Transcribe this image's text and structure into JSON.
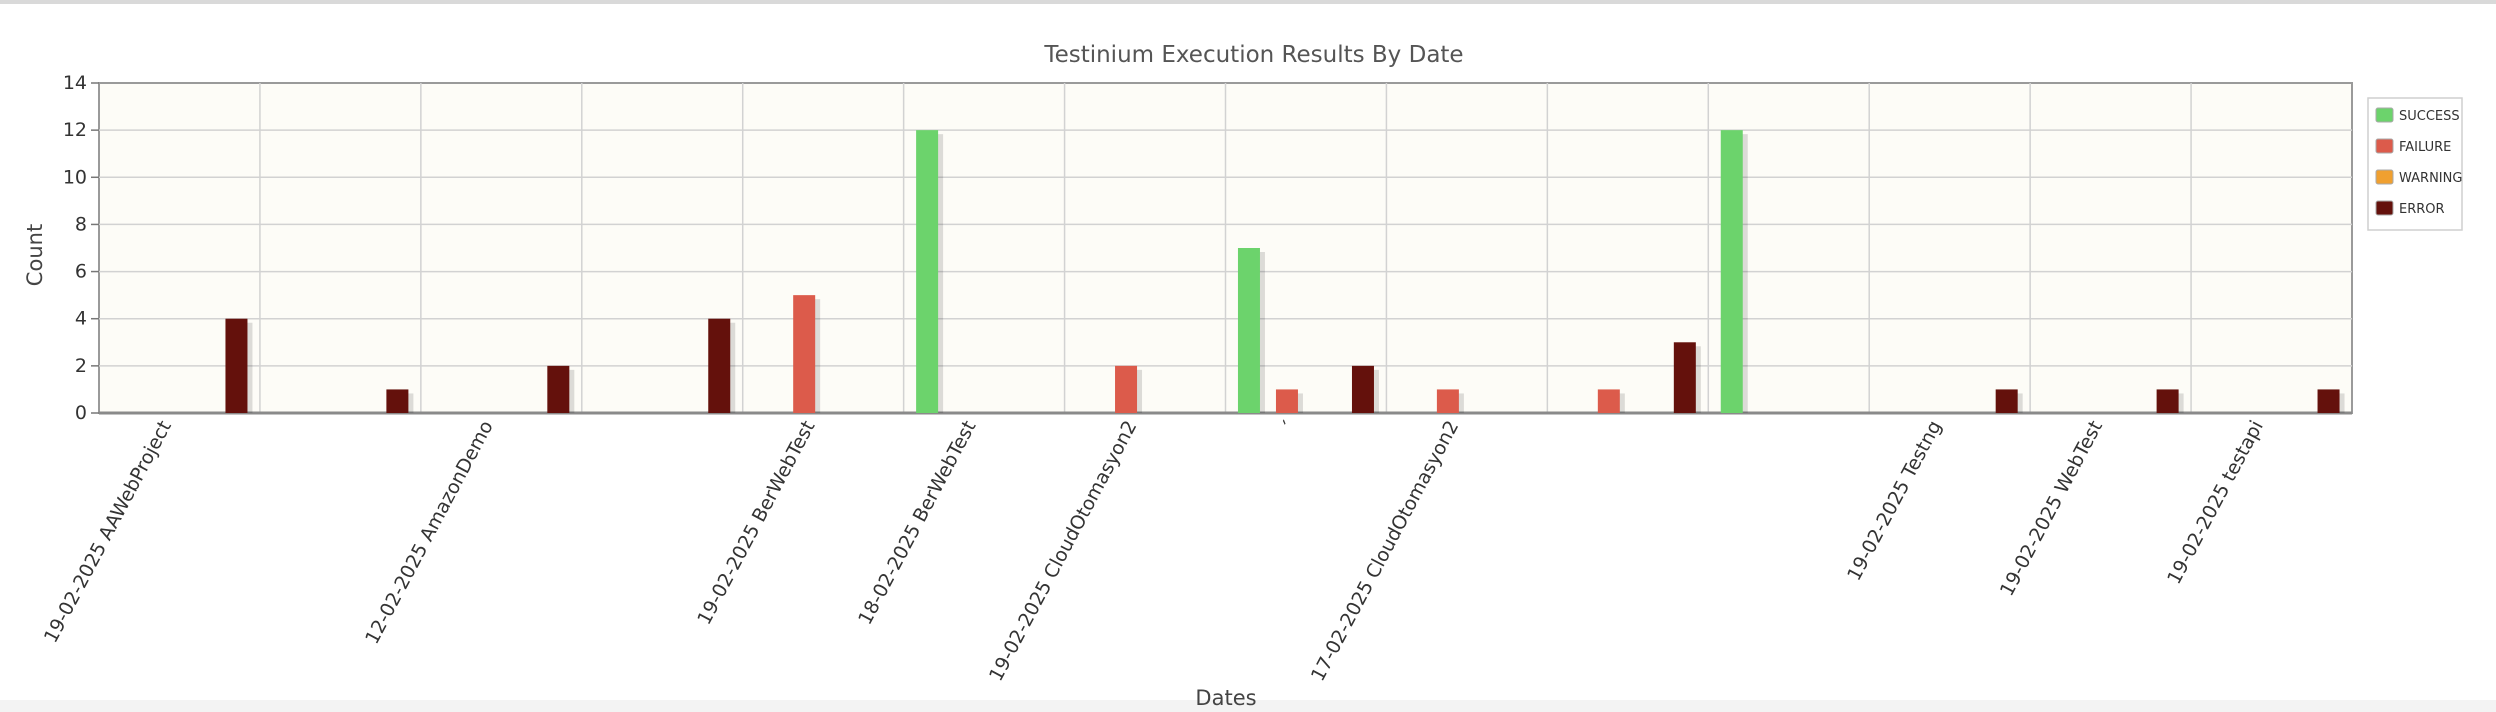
{
  "chart_data": {
    "type": "bar",
    "title": "Testinium Execution Results By Date",
    "xlabel": "Dates",
    "ylabel": "Count",
    "ylim": [
      0,
      14
    ],
    "yticks": [
      0,
      2,
      4,
      6,
      8,
      10,
      12,
      14
    ],
    "grid": true,
    "legend_position": "right",
    "categories": [
      "19-02-2025 AAWebProject",
      "",
      "12-02-2025 AmazonDemo",
      "",
      "19-02-2025 BerWebTest",
      "18-02-2025 BerWebTest",
      "19-02-2025 CloudOtomasyon2",
      "´",
      "17-02-2025 CloudOtomasyon2",
      "",
      "",
      "19-02-2025 Testng",
      "19-02-2025 WebTest",
      "19-02-2025 testapi"
    ],
    "series": [
      {
        "name": "SUCCESS",
        "color": "#6cd36c",
        "values": [
          0,
          0,
          0,
          0,
          0,
          12,
          0,
          7,
          0,
          0,
          12,
          0,
          0,
          0
        ]
      },
      {
        "name": "FAILURE",
        "color": "#dc5b4b",
        "values": [
          0,
          0,
          0,
          0,
          5,
          0,
          2,
          1,
          1,
          1,
          0,
          0,
          0,
          0
        ]
      },
      {
        "name": "WARNING",
        "color": "#f0a030",
        "values": [
          0,
          0,
          0,
          0,
          0,
          0,
          0,
          0,
          0,
          0,
          0,
          0,
          0,
          0
        ]
      },
      {
        "name": "ERROR",
        "color": "#64110c",
        "values": [
          4,
          1,
          2,
          4,
          0,
          0,
          0,
          2,
          0,
          3,
          0,
          1,
          1,
          1
        ]
      }
    ]
  }
}
